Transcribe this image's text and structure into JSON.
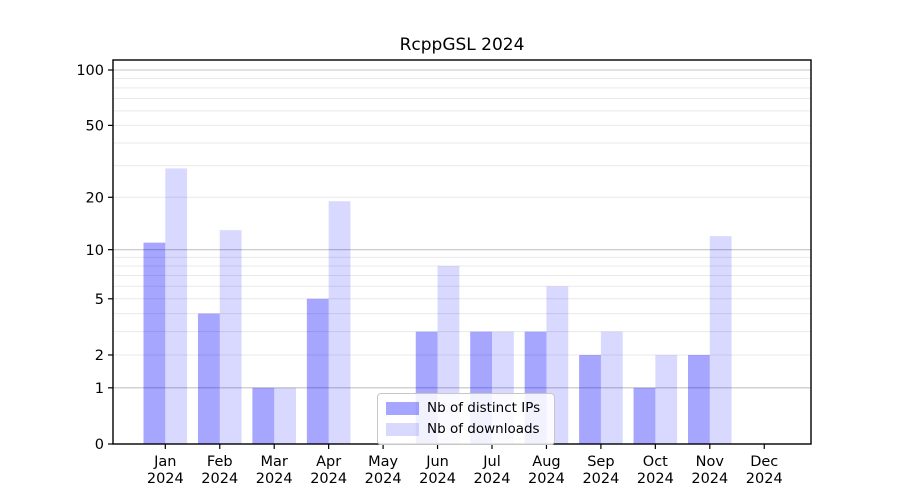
{
  "chart_data": {
    "type": "bar",
    "title": "RcppGSL 2024",
    "categories": [
      "Jan 2024",
      "Feb 2024",
      "Mar 2024",
      "Apr 2024",
      "May 2024",
      "Jun 2024",
      "Jul 2024",
      "Aug 2024",
      "Sep 2024",
      "Oct 2024",
      "Nov 2024",
      "Dec 2024"
    ],
    "series": [
      {
        "name": "Nb of distinct IPs",
        "color": "rgba(0,0,255,0.35)",
        "values": [
          11,
          4,
          1,
          5,
          0,
          3,
          3,
          3,
          2,
          1,
          2,
          0
        ]
      },
      {
        "name": "Nb of downloads",
        "color": "rgba(0,0,255,0.15)",
        "values": [
          29,
          13,
          1,
          19,
          0,
          8,
          3,
          6,
          3,
          2,
          12,
          0
        ]
      }
    ],
    "yscale": "log1p",
    "yticks": [
      0,
      1,
      2,
      5,
      10,
      20,
      50,
      100
    ],
    "y_major_gridlines": [
      1,
      10,
      100
    ],
    "y_minor_gridlines": [
      2,
      3,
      4,
      5,
      6,
      7,
      8,
      9,
      20,
      30,
      40,
      50,
      60,
      70,
      80,
      90
    ],
    "ylim": [
      0,
      114
    ],
    "grid": "horizontal",
    "legend_position": "inside-lower-center",
    "colors": {
      "major_grid": "#c4c4c4",
      "minor_grid": "#e9e9e9",
      "axis": "#000000",
      "text": "#000000"
    }
  }
}
